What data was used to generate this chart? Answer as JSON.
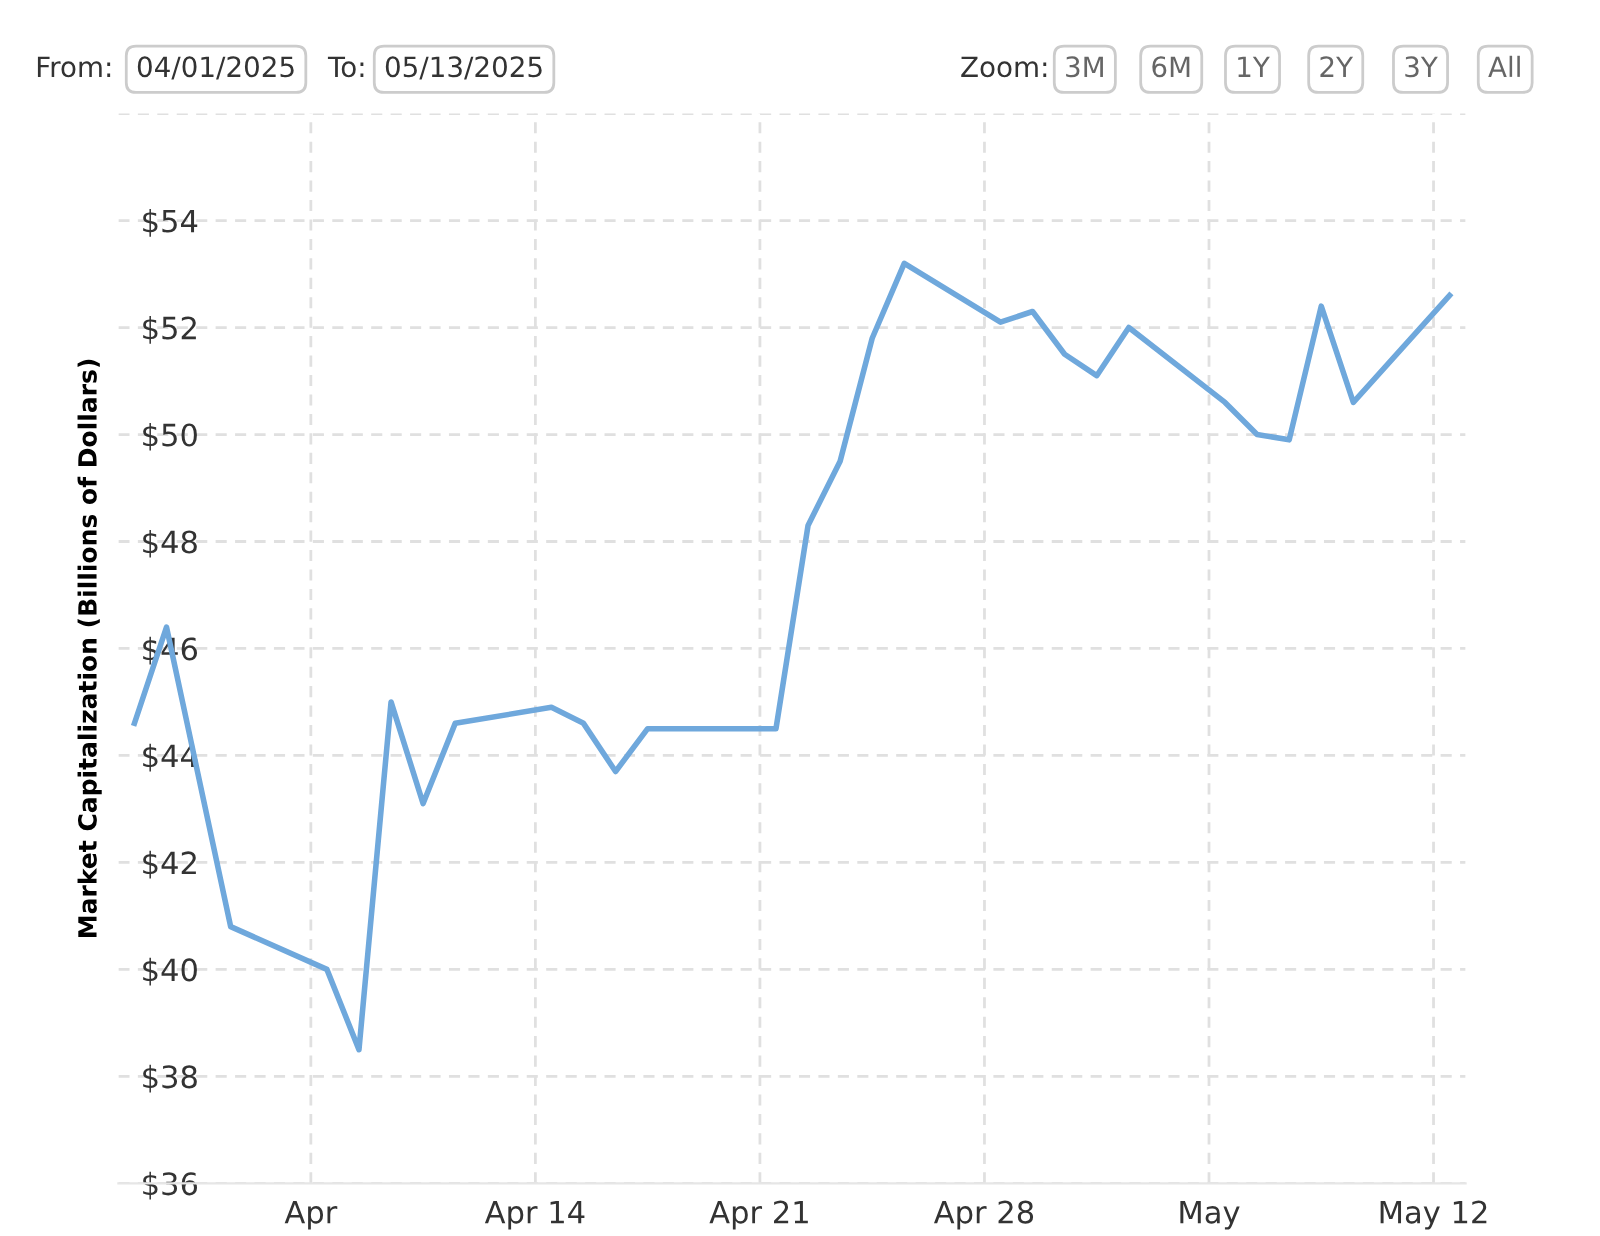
{
  "chart_data": {
    "type": "line",
    "ylabel": "Market Capitalization (Billions of Dollars)",
    "x": [
      "2025-04-01T12:00",
      "2025-04-02T12:00",
      "2025-04-04T12:00",
      "2025-04-07T12:00",
      "2025-04-08T12:00",
      "2025-04-09T12:00",
      "2025-04-10T12:00",
      "2025-04-11T12:00",
      "2025-04-14T12:00",
      "2025-04-15T12:00",
      "2025-04-16T12:00",
      "2025-04-17T12:00",
      "2025-04-21T12:00",
      "2025-04-22T12:00",
      "2025-04-23T12:00",
      "2025-04-24T12:00",
      "2025-04-25T12:00",
      "2025-04-28T12:00",
      "2025-04-29T12:00",
      "2025-04-30T12:00",
      "2025-05-01T12:00",
      "2025-05-02T12:00",
      "2025-05-05T12:00",
      "2025-05-06T12:00",
      "2025-05-07T12:00",
      "2025-05-08T12:00",
      "2025-05-09T12:00",
      "2025-05-12T12:00"
    ],
    "series": [
      {
        "color": "#6fa8dc",
        "values": [
          44.6,
          46.4,
          40.8,
          40.0,
          38.5,
          45.0,
          43.1,
          44.6,
          44.9,
          44.6,
          43.7,
          44.5,
          44.5,
          48.3,
          49.5,
          51.8,
          53.2,
          52.1,
          52.3,
          51.5,
          51.1,
          52.0,
          50.6,
          50.0,
          49.9,
          52.4,
          50.6,
          52.6
        ]
      }
    ],
    "xlim": [
      "2025-04-01",
      "2025-05-13"
    ],
    "xticks": [
      {
        "value": "2025-04-07",
        "label": "Apr"
      },
      {
        "value": "2025-04-14",
        "label": "Apr 14"
      },
      {
        "value": "2025-04-21",
        "label": "Apr 21"
      },
      {
        "value": "2025-04-28",
        "label": "Apr 28"
      },
      {
        "value": "2025-05-05",
        "label": "May"
      },
      {
        "value": "2025-05-12",
        "label": "May 12"
      }
    ],
    "ylim": [
      36,
      56
    ],
    "yticks": [
      {
        "value": 36,
        "label": "$36"
      },
      {
        "value": 38,
        "label": "$38"
      },
      {
        "value": 40,
        "label": "$40"
      },
      {
        "value": 42,
        "label": "$42"
      },
      {
        "value": 44,
        "label": "$44"
      },
      {
        "value": 46,
        "label": "$46"
      },
      {
        "value": 48,
        "label": "$48"
      },
      {
        "value": 50,
        "label": "$50"
      },
      {
        "value": 52,
        "label": "$52"
      },
      {
        "value": 54,
        "label": "$54"
      },
      {
        "value": 56,
        "label": null
      }
    ],
    "grid": true,
    "line_style": "solid",
    "marker": "none",
    "legend": false,
    "annotations": [
      "From:",
      "04/01/2025",
      "To:",
      "05/13/2025",
      "Zoom:",
      "3M",
      "6M",
      "1Y",
      "2Y",
      "3Y",
      "All"
    ]
  }
}
